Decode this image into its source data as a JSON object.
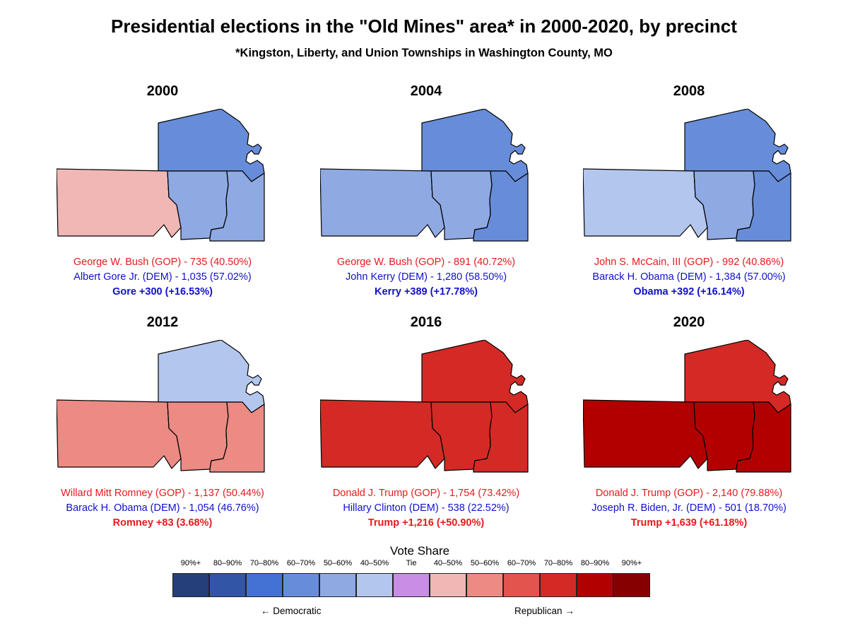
{
  "title": "Presidential elections in the \"Old Mines\" area* in 2000-2020, by precinct",
  "subtitle": "*Kingston, Liberty, and Union Townships in Washington County, MO",
  "colors": {
    "dem_90": "#243f7a",
    "dem_80": "#3355a6",
    "dem_70": "#4472d4",
    "dem_60": "#678dda",
    "dem_50": "#8fa9e3",
    "dem_40": "#b3c6ee",
    "tie": "#c88de4",
    "rep_40": "#f0b7b4",
    "rep_50": "#ec8a84",
    "rep_60": "#e3544f",
    "rep_70": "#d32a26",
    "rep_80": "#b20000",
    "rep_90": "#860000"
  },
  "panels": [
    {
      "year": "2000",
      "gop_line": "George W. Bush  (GOP) - 735 (40.50%)",
      "dem_line": "Albert Gore Jr.  (DEM) - 1,035 (57.02%)",
      "margin_line": "Gore +300 (+16.53%)",
      "margin_party": "dem",
      "precinct_colors": {
        "north": "#678dda",
        "west": "#f0b7b4",
        "middle": "#8fa9e3",
        "east": "#8fa9e3"
      }
    },
    {
      "year": "2004",
      "gop_line": "George W. Bush  (GOP) - 891 (40.72%)",
      "dem_line": "John Kerry (DEM) - 1,280 (58.50%)",
      "margin_line": "Kerry +389 (+17.78%)",
      "margin_party": "dem",
      "precinct_colors": {
        "north": "#678dda",
        "west": "#8fa9e3",
        "middle": "#8fa9e3",
        "east": "#678dda"
      }
    },
    {
      "year": "2008",
      "gop_line": "John S. McCain, III  (GOP) - 992 (40.86%)",
      "dem_line": "Barack H. Obama  (DEM) - 1,384 (57.00%)",
      "margin_line": "Obama +392 (+16.14%)",
      "margin_party": "dem",
      "precinct_colors": {
        "north": "#678dda",
        "west": "#b3c6ee",
        "middle": "#8fa9e3",
        "east": "#678dda"
      }
    },
    {
      "year": "2012",
      "gop_line": "Willard Mitt Romney (GOP) - 1,137 (50.44%)",
      "dem_line": "Barack H. Obama (DEM) - 1,054 (46.76%)",
      "margin_line": "Romney +83 (3.68%)",
      "margin_party": "rep",
      "precinct_colors": {
        "north": "#b3c6ee",
        "west": "#ec8a84",
        "middle": "#ec8a84",
        "east": "#ec8a84"
      }
    },
    {
      "year": "2016",
      "gop_line": "Donald J. Trump  (GOP) - 1,754 (73.42%)",
      "dem_line": "Hillary Clinton  (DEM) - 538 (22.52%)",
      "margin_line": "Trump +1,216 (+50.90%)",
      "margin_party": "rep",
      "precinct_colors": {
        "north": "#d32a26",
        "west": "#d32a26",
        "middle": "#d32a26",
        "east": "#d32a26"
      }
    },
    {
      "year": "2020",
      "gop_line": "Donald J. Trump  (GOP) - 2,140 (79.88%)",
      "dem_line": "Joseph R. Biden, Jr.  (DEM) - 501 (18.70%)",
      "margin_line": "Trump +1,639 (+61.18%)",
      "margin_party": "rep",
      "precinct_colors": {
        "north": "#d32a26",
        "west": "#b20000",
        "middle": "#b20000",
        "east": "#b20000"
      }
    }
  ],
  "legend": {
    "title": "Vote Share",
    "items": [
      {
        "label": "90%+",
        "color": "#243f7a"
      },
      {
        "label": "80–90%",
        "color": "#3355a6"
      },
      {
        "label": "70–80%",
        "color": "#4472d4"
      },
      {
        "label": "60–70%",
        "color": "#678dda"
      },
      {
        "label": "50–60%",
        "color": "#8fa9e3"
      },
      {
        "label": "40–50%",
        "color": "#b3c6ee"
      },
      {
        "label": "Tie",
        "color": "#c88de4"
      },
      {
        "label": "40–50%",
        "color": "#f0b7b4"
      },
      {
        "label": "50–60%",
        "color": "#ec8a84"
      },
      {
        "label": "60–70%",
        "color": "#e3544f"
      },
      {
        "label": "70–80%",
        "color": "#d32a26"
      },
      {
        "label": "80–90%",
        "color": "#b20000"
      },
      {
        "label": "90%+",
        "color": "#860000"
      }
    ],
    "dem_label": "← Democratic",
    "rep_label": "Republican →"
  }
}
